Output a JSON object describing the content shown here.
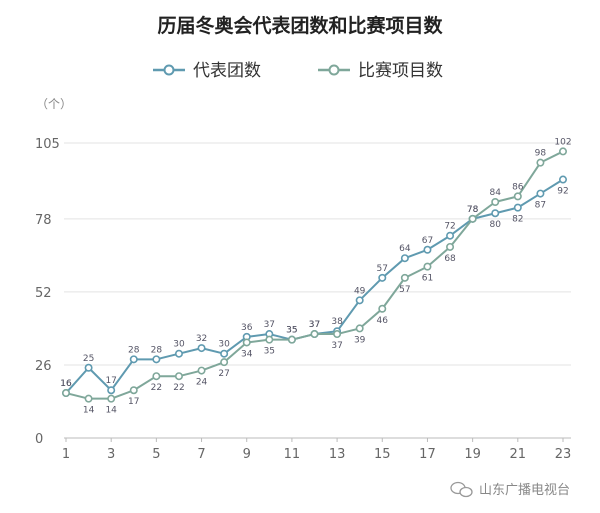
{
  "chart_data": {
    "type": "line",
    "title": "历届冬奥会代表团数和比赛项目数",
    "unit_label": "（个）",
    "x": [
      1,
      2,
      3,
      4,
      5,
      6,
      7,
      8,
      9,
      10,
      11,
      12,
      13,
      14,
      15,
      16,
      17,
      18,
      19,
      20,
      21,
      22,
      23
    ],
    "x_tick_labels": [
      "1",
      "3",
      "5",
      "7",
      "9",
      "11",
      "13",
      "15",
      "17",
      "19",
      "21",
      "23"
    ],
    "y_ticks": [
      "0",
      "26",
      "52",
      "78",
      "105"
    ],
    "ylim": [
      0,
      105
    ],
    "grid": "horizontal",
    "legend_position": "top",
    "series": [
      {
        "name": "代表团数",
        "color": "#5f9ab0",
        "values": [
          16,
          25,
          17,
          28,
          28,
          30,
          32,
          30,
          36,
          37,
          35,
          37,
          38,
          49,
          57,
          64,
          67,
          72,
          78,
          80,
          82,
          87,
          92
        ]
      },
      {
        "name": "比赛项目数",
        "color": "#7fa79a",
        "values": [
          16,
          14,
          14,
          17,
          22,
          22,
          24,
          27,
          34,
          35,
          35,
          37,
          37,
          39,
          46,
          57,
          61,
          68,
          78,
          84,
          86,
          98,
          102
        ]
      }
    ]
  },
  "watermark": {
    "text": "山东广播电视台",
    "icon": "wechat-icon"
  }
}
